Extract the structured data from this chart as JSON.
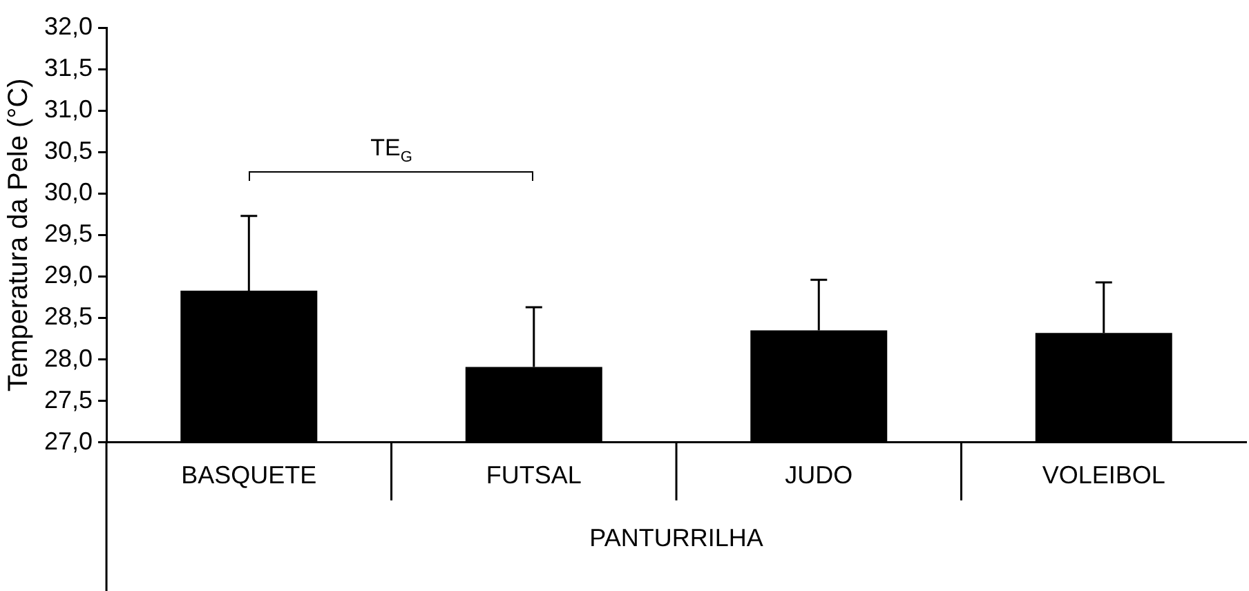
{
  "chart_data": {
    "type": "bar",
    "ylabel": "Temperatura da Pele (°C)",
    "xlabel": "PANTURRILHA",
    "categories": [
      "BASQUETE",
      "FUTSAL",
      "JUDO",
      "VOLEIBOL"
    ],
    "values": [
      28.83,
      27.91,
      28.35,
      28.32
    ],
    "errors": [
      [
        28.83,
        29.73
      ],
      [
        27.91,
        28.63
      ],
      [
        28.35,
        28.96
      ],
      [
        28.32,
        28.93
      ]
    ],
    "color": "#000000",
    "ylim": [
      27,
      32
    ],
    "yticks": [
      {
        "value": 27,
        "label": "27,0"
      },
      {
        "value": 27.5,
        "label": "27,5"
      },
      {
        "value": 28,
        "label": "28,0"
      },
      {
        "value": 28.5,
        "label": "28,5"
      },
      {
        "value": 29,
        "label": "29,0"
      },
      {
        "value": 29.5,
        "label": "29,5"
      },
      {
        "value": 30,
        "label": "30,0"
      },
      {
        "value": 30.5,
        "label": "30,5"
      },
      {
        "value": 31,
        "label": "31,0"
      },
      {
        "value": 31.5,
        "label": "31,5"
      },
      {
        "value": 32,
        "label": "32,0"
      }
    ],
    "annotations": [
      "TE$_{G}$"
    ],
    "grid": false,
    "legend": false
  }
}
